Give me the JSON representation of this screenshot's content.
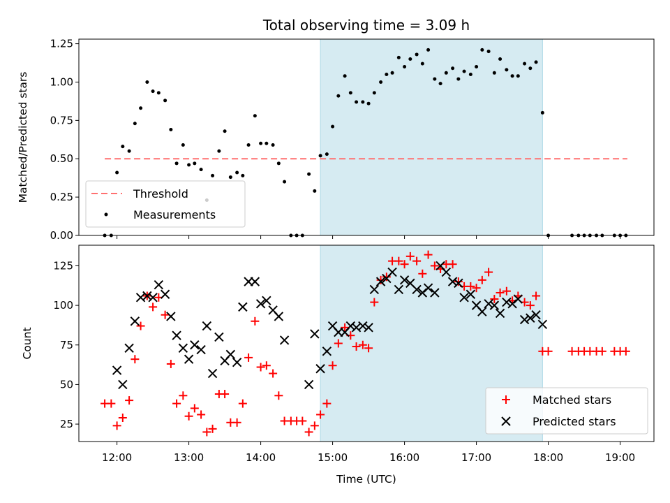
{
  "chart_data": {
    "title": "Total observing time = 3.09 h",
    "xlabel": "Time (UTC)",
    "x_tick_labels": [
      "12:00",
      "13:00",
      "14:00",
      "15:00",
      "16:00",
      "17:00",
      "18:00",
      "19:00"
    ],
    "x_ticks_hours": [
      12,
      13,
      14,
      15,
      16,
      17,
      18,
      19
    ],
    "xlim_hours": [
      11.47,
      19.47
    ],
    "observing_window_hours": [
      14.83,
      17.92
    ],
    "colors": {
      "window": "#add8e6",
      "threshold": "#ff7070",
      "measurement": "#000000",
      "matched": "#ff0000",
      "predicted": "#000000"
    },
    "panels": [
      {
        "type": "scatter",
        "ylabel": "Matched/Predicted stars",
        "ylim": [
          0,
          1.28
        ],
        "y_ticks": [
          0,
          0.25,
          0.5,
          0.75,
          1.0,
          1.25
        ],
        "y_tick_labels": [
          "0.00",
          "0.25",
          "0.50",
          "0.75",
          "1.00",
          "1.25"
        ],
        "legend_position": "lower-left",
        "threshold": {
          "name": "Threshold",
          "value": 0.5,
          "x_range_hours": [
            11.83,
            19.1
          ]
        },
        "series": [
          {
            "name": "Measurements",
            "marker": "dot",
            "x": [
              11.83,
              11.92,
              12.0,
              12.08,
              12.17,
              12.25,
              12.33,
              12.42,
              12.5,
              12.58,
              12.67,
              12.75,
              12.83,
              12.92,
              13.0,
              13.08,
              13.17,
              13.25,
              13.33,
              13.42,
              13.5,
              13.58,
              13.67,
              13.75,
              13.83,
              13.92,
              14.0,
              14.08,
              14.17,
              14.25,
              14.33,
              14.42,
              14.5,
              14.58,
              14.67,
              14.75,
              14.83,
              14.92,
              15.0,
              15.08,
              15.17,
              15.25,
              15.33,
              15.42,
              15.5,
              15.58,
              15.67,
              15.75,
              15.83,
              15.92,
              16.0,
              16.08,
              16.17,
              16.25,
              16.33,
              16.42,
              16.5,
              16.58,
              16.67,
              16.75,
              16.83,
              16.92,
              17.0,
              17.08,
              17.17,
              17.25,
              17.33,
              17.42,
              17.5,
              17.58,
              17.67,
              17.75,
              17.83,
              17.92,
              18.0,
              18.33,
              18.42,
              18.5,
              18.58,
              18.67,
              18.75,
              18.92,
              19.0,
              19.08
            ],
            "y": [
              0,
              0,
              0.41,
              0.58,
              0.55,
              0.73,
              0.83,
              1.0,
              0.94,
              0.93,
              0.88,
              0.69,
              0.47,
              0.59,
              0.46,
              0.47,
              0.43,
              0.23,
              0.39,
              0.55,
              0.68,
              0.38,
              0.41,
              0.39,
              0.59,
              0.78,
              0.6,
              0.6,
              0.59,
              0.47,
              0.35,
              0,
              0,
              0,
              0.4,
              0.29,
              0.52,
              0.53,
              0.71,
              0.91,
              1.04,
              0.93,
              0.87,
              0.87,
              0.86,
              0.93,
              1.0,
              1.05,
              1.06,
              1.16,
              1.1,
              1.15,
              1.18,
              1.12,
              1.21,
              1.02,
              0.99,
              1.06,
              1.09,
              1.02,
              1.07,
              1.05,
              1.1,
              1.21,
              1.2,
              1.06,
              1.15,
              1.08,
              1.04,
              1.04,
              1.12,
              1.09,
              1.13,
              0.8,
              0,
              0,
              0,
              0,
              0,
              0,
              0,
              0,
              0,
              0
            ]
          }
        ]
      },
      {
        "type": "scatter",
        "ylabel": "Count",
        "ylim": [
          14,
          138
        ],
        "y_ticks": [
          25,
          50,
          75,
          100,
          125
        ],
        "y_tick_labels": [
          "25",
          "50",
          "75",
          "100",
          "125"
        ],
        "legend_position": "lower-right",
        "series": [
          {
            "name": "Matched stars",
            "marker": "plus",
            "x": [
              11.83,
              11.92,
              12.0,
              12.08,
              12.17,
              12.25,
              12.33,
              12.42,
              12.5,
              12.58,
              12.67,
              12.75,
              12.83,
              12.92,
              13.0,
              13.08,
              13.17,
              13.25,
              13.33,
              13.42,
              13.5,
              13.58,
              13.67,
              13.75,
              13.83,
              13.92,
              14.0,
              14.08,
              14.17,
              14.25,
              14.33,
              14.42,
              14.5,
              14.58,
              14.67,
              14.75,
              14.83,
              14.92,
              15.0,
              15.08,
              15.17,
              15.25,
              15.33,
              15.42,
              15.5,
              15.58,
              15.67,
              15.75,
              15.83,
              15.92,
              16.0,
              16.08,
              16.17,
              16.25,
              16.33,
              16.42,
              16.5,
              16.58,
              16.67,
              16.75,
              16.83,
              16.92,
              17.0,
              17.08,
              17.17,
              17.25,
              17.33,
              17.42,
              17.5,
              17.58,
              17.67,
              17.75,
              17.83,
              17.92,
              18.0,
              18.33,
              18.42,
              18.5,
              18.58,
              18.67,
              18.75,
              18.92,
              19.0,
              19.08
            ],
            "y": [
              38,
              38,
              24,
              29,
              40,
              66,
              87,
              106,
              99,
              105,
              94,
              63,
              38,
              43,
              30,
              35,
              31,
              20,
              22,
              44,
              44,
              26,
              26,
              38,
              67,
              90,
              61,
              62,
              57,
              43,
              27,
              27,
              27,
              27,
              20,
              24,
              31,
              38,
              62,
              76,
              86,
              81,
              74,
              75,
              73,
              102,
              116,
              118,
              128,
              128,
              126,
              131,
              128,
              120,
              132,
              125,
              123,
              126,
              126,
              115,
              112,
              112,
              111,
              116,
              121,
              104,
              108,
              109,
              103,
              106,
              102,
              100,
              106,
              71,
              71,
              71,
              71,
              71,
              71,
              71,
              71,
              71,
              71,
              71
            ]
          },
          {
            "name": "Predicted stars",
            "marker": "x",
            "x": [
              12.0,
              12.08,
              12.17,
              12.25,
              12.33,
              12.42,
              12.5,
              12.58,
              12.67,
              12.75,
              12.83,
              12.92,
              13.0,
              13.08,
              13.17,
              13.25,
              13.33,
              13.42,
              13.5,
              13.58,
              13.67,
              13.75,
              13.83,
              13.92,
              14.0,
              14.08,
              14.17,
              14.25,
              14.33,
              14.67,
              14.75,
              14.83,
              14.92,
              15.0,
              15.08,
              15.17,
              15.25,
              15.33,
              15.42,
              15.5,
              15.58,
              15.67,
              15.75,
              15.83,
              15.92,
              16.0,
              16.08,
              16.17,
              16.25,
              16.33,
              16.42,
              16.5,
              16.58,
              16.67,
              16.75,
              16.83,
              16.92,
              17.0,
              17.08,
              17.17,
              17.25,
              17.33,
              17.42,
              17.5,
              17.58,
              17.67,
              17.75,
              17.83,
              17.92
            ],
            "y": [
              59,
              50,
              73,
              90,
              105,
              106,
              105,
              113,
              107,
              93,
              81,
              73,
              66,
              75,
              72,
              87,
              57,
              80,
              65,
              69,
              64,
              99,
              115,
              115,
              101,
              103,
              97,
              93,
              78,
              50,
              82,
              60,
              71,
              87,
              83,
              83,
              87,
              86,
              87,
              86,
              110,
              115,
              117,
              121,
              110,
              116,
              114,
              110,
              108,
              111,
              108,
              125,
              121,
              115,
              114,
              105,
              107,
              100,
              96,
              101,
              100,
              95,
              102,
              101,
              104,
              91,
              92,
              94,
              88
            ]
          }
        ]
      }
    ]
  }
}
